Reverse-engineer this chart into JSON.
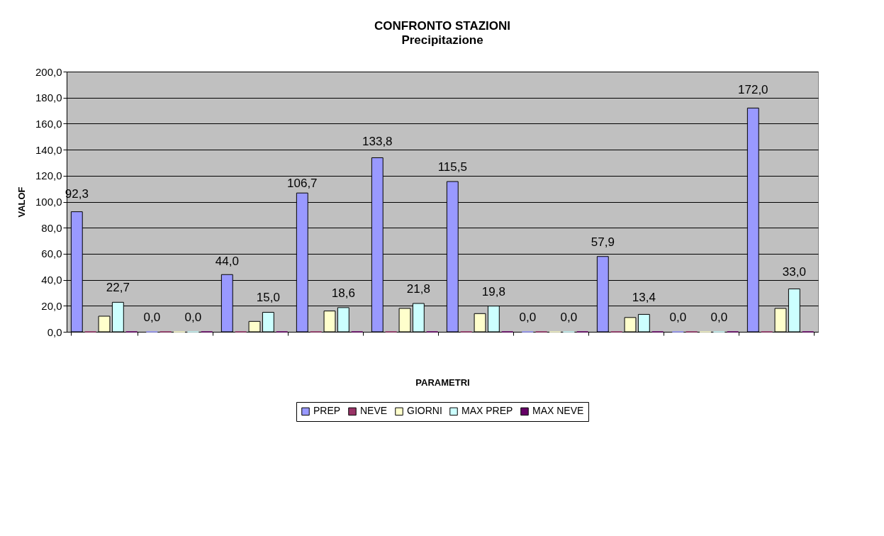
{
  "chart_data": {
    "type": "bar",
    "title": "CONFRONTO STAZIONI",
    "subtitle": "Precipitazione",
    "xlabel": "PARAMETRI",
    "ylabel": "VALOF",
    "categories": [
      null,
      null,
      null,
      null,
      null,
      null,
      null,
      null,
      null,
      null
    ],
    "series": [
      {
        "name": "PREP",
        "color": "#9999ff",
        "values": [
          92.3,
          0,
          44.0,
          106.7,
          133.8,
          115.5,
          0,
          57.9,
          0,
          172.0
        ],
        "value_labels": [
          "92,3",
          "0,0",
          "44,0",
          "106,7",
          "133,8",
          "115,5",
          "0,0",
          "57,9",
          "0,0",
          "172,0"
        ]
      },
      {
        "name": "NEVE",
        "color": "#993366",
        "values": [
          0,
          0,
          0,
          0,
          0,
          0,
          0,
          0,
          0,
          0
        ]
      },
      {
        "name": "GIORNI",
        "color": "#ffffcc",
        "values": [
          12,
          0,
          8,
          16,
          18,
          14,
          0,
          11,
          0,
          18
        ]
      },
      {
        "name": "MAX PREP",
        "color": "#ccffff",
        "values": [
          22.7,
          0,
          15.0,
          18.6,
          21.8,
          19.8,
          0,
          13.4,
          0,
          33.0
        ],
        "value_labels": [
          "22,7",
          "0,0",
          "15,0",
          "18,6",
          "21,8",
          "19,8",
          "0,0",
          "13,4",
          "0,0",
          "33,0"
        ]
      },
      {
        "name": "MAX NEVE",
        "color": "#660066",
        "values": [
          0,
          0,
          0,
          0,
          0,
          0,
          0,
          0,
          0,
          0
        ]
      }
    ],
    "ylim": [
      0,
      200
    ],
    "yticks": [
      {
        "value": 0,
        "label": "0,0"
      },
      {
        "value": 20,
        "label": "20,0"
      },
      {
        "value": 40,
        "label": "40,0"
      },
      {
        "value": 60,
        "label": "60,0"
      },
      {
        "value": 80,
        "label": "80,0"
      },
      {
        "value": 100,
        "label": "100,0"
      },
      {
        "value": 120,
        "label": "120,0"
      },
      {
        "value": 140,
        "label": "140,0"
      },
      {
        "value": 160,
        "label": "160,0"
      },
      {
        "value": 180,
        "label": "180,0"
      },
      {
        "value": 200,
        "label": "200,0"
      }
    ],
    "grid": "y",
    "legend": "bottom",
    "tick_labels": "y"
  }
}
